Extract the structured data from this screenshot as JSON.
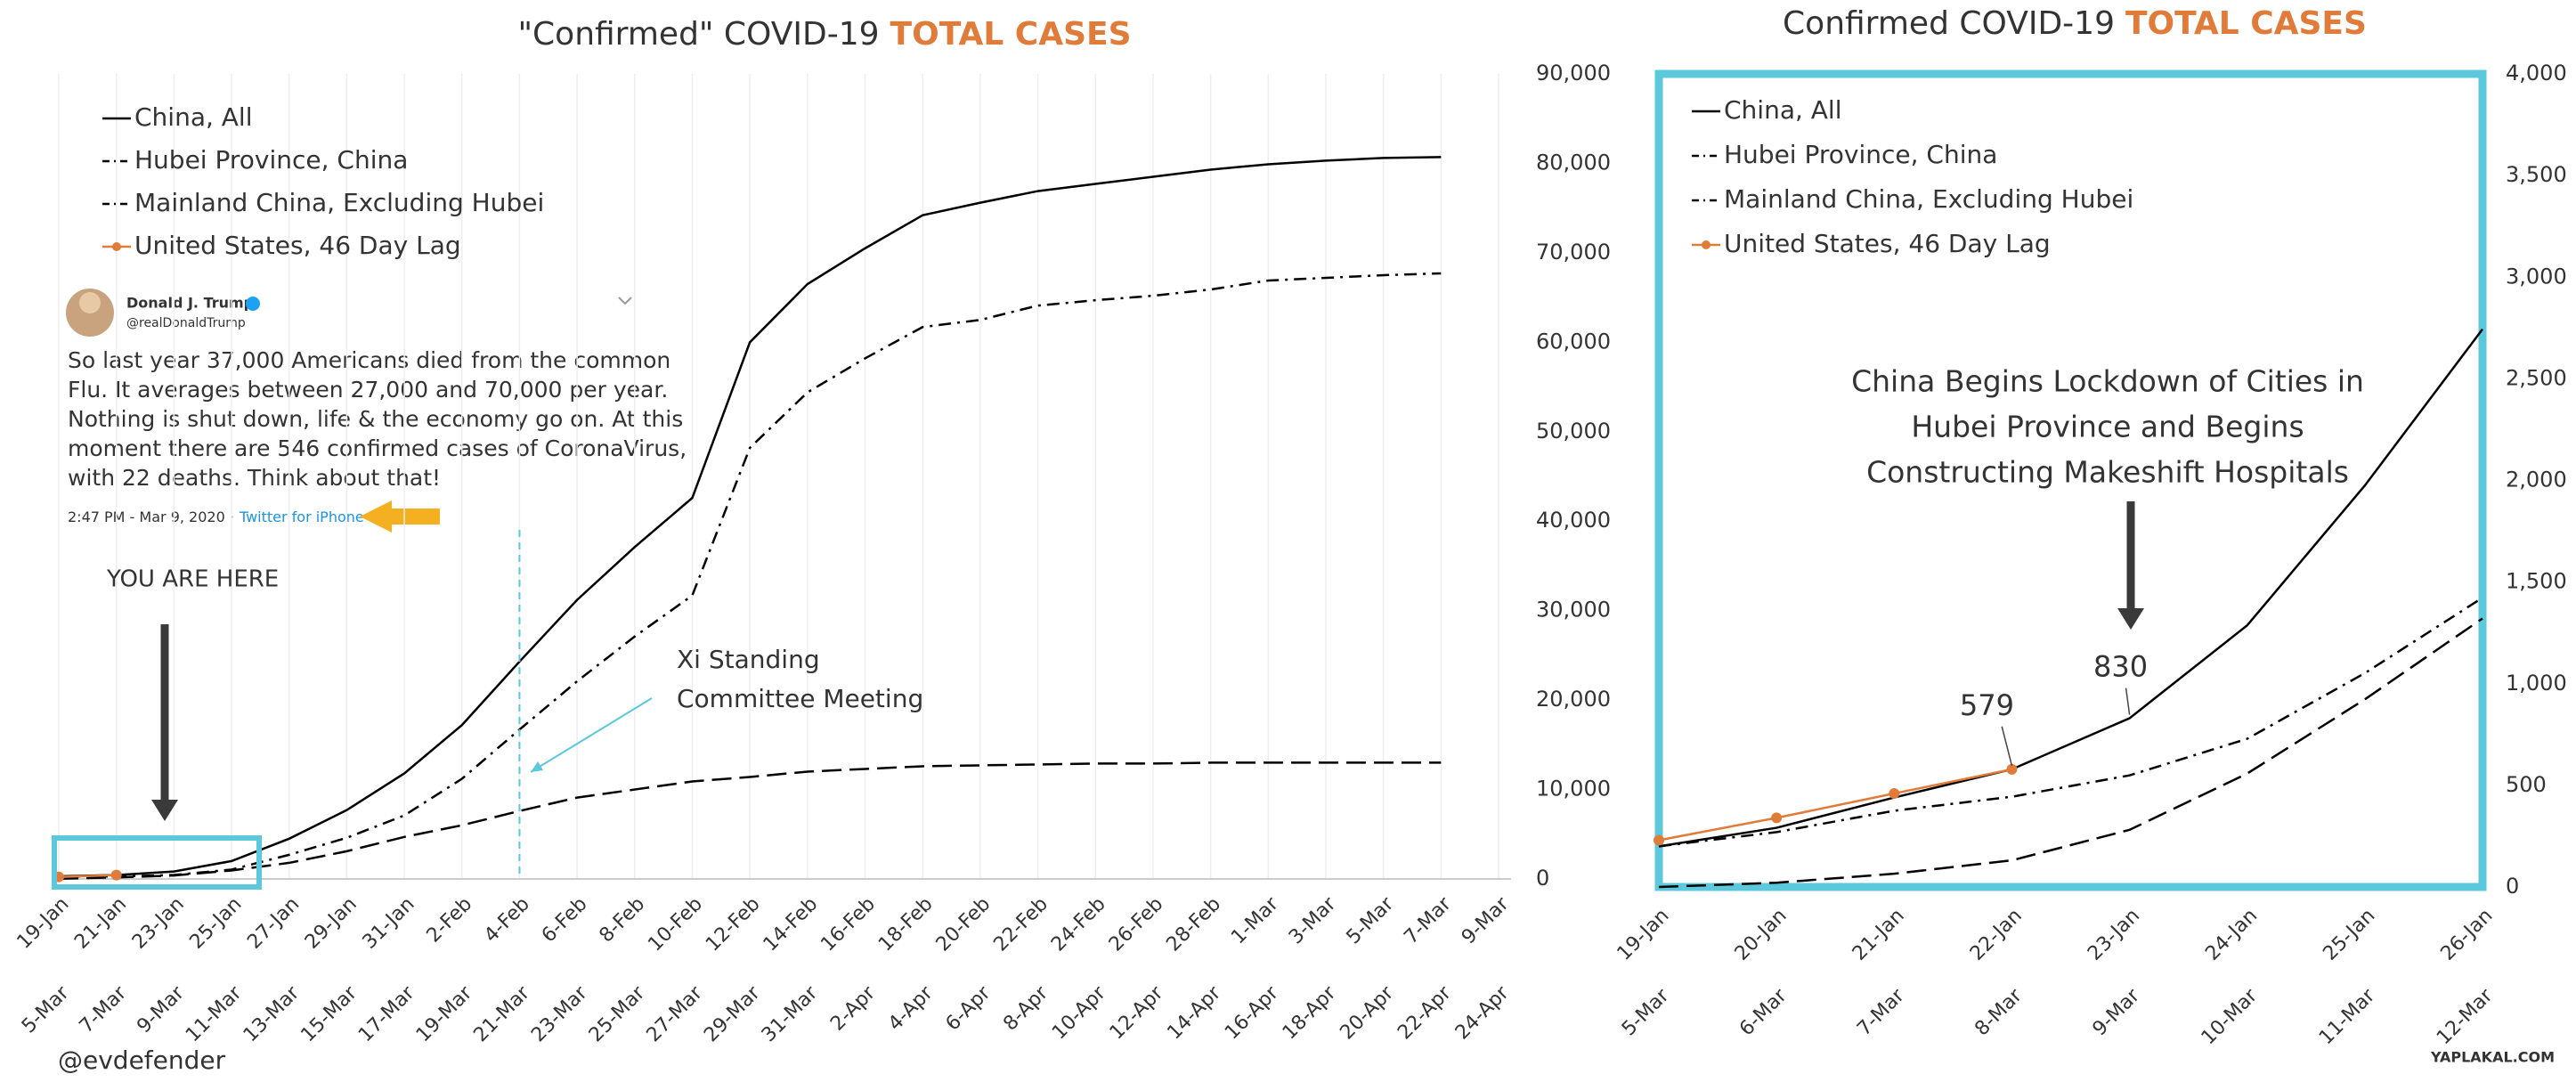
{
  "chart_data": [
    {
      "type": "line",
      "title_parts": [
        "\"Confirmed\" COVID-19",
        "TOTAL CASES"
      ],
      "categories": [
        "19-Jan",
        "21-Jan",
        "23-Jan",
        "25-Jan",
        "27-Jan",
        "29-Jan",
        "31-Jan",
        "2-Feb",
        "4-Feb",
        "6-Feb",
        "8-Feb",
        "10-Feb",
        "12-Feb",
        "14-Feb",
        "16-Feb",
        "18-Feb",
        "20-Feb",
        "22-Feb",
        "24-Feb",
        "26-Feb",
        "28-Feb",
        "1-Mar",
        "3-Mar",
        "5-Mar",
        "7-Mar",
        "9-Mar"
      ],
      "categories_secondary": [
        "5-Mar",
        "7-Mar",
        "9-Mar",
        "11-Mar",
        "13-Mar",
        "15-Mar",
        "17-Mar",
        "19-Mar",
        "21-Mar",
        "23-Mar",
        "25-Mar",
        "27-Mar",
        "29-Mar",
        "31-Mar",
        "2-Apr",
        "4-Apr",
        "6-Apr",
        "8-Apr",
        "10-Apr",
        "12-Apr",
        "14-Apr",
        "16-Apr",
        "18-Apr",
        "20-Apr",
        "22-Apr",
        "24-Apr"
      ],
      "secondary_color": "#e07b39",
      "series": [
        {
          "name": "China, All",
          "color": "#000000",
          "dash": "solid",
          "values": [
            300,
            440,
            830,
            2000,
            4500,
            7700,
            11800,
            17200,
            24300,
            31200,
            37100,
            42600,
            60000,
            66500,
            70500,
            74200,
            75600,
            76900,
            77700,
            78500,
            79300,
            79900,
            80300,
            80600,
            80700,
            null
          ]
        },
        {
          "name": "Hubei Province, China",
          "color": "#000000",
          "dash": "dashdot",
          "values": [
            270,
            270,
            444,
            1050,
            2700,
            4600,
            7100,
            11200,
            16700,
            22100,
            27100,
            31700,
            48200,
            54400,
            58200,
            61700,
            62500,
            64100,
            64700,
            65200,
            65900,
            66900,
            67200,
            67500,
            67700,
            null
          ]
        },
        {
          "name": "Mainland China, Excluding Hubei",
          "color": "#000000",
          "dash": "longdash",
          "values": [
            30,
            170,
            390,
            950,
            1800,
            3100,
            4700,
            6000,
            7600,
            9100,
            10000,
            10900,
            11400,
            12000,
            12300,
            12600,
            12700,
            12800,
            12900,
            12900,
            13000,
            13000,
            13000,
            13000,
            13000,
            null
          ]
        },
        {
          "name": "United States, 46 Day Lag",
          "color": "#e07b39",
          "dash": "solid",
          "marker": true,
          "values": [
            230,
            435,
            null,
            null,
            null,
            null,
            null,
            null,
            null,
            null,
            null,
            null,
            null,
            null,
            null,
            null,
            null,
            null,
            null,
            null,
            null,
            null,
            null,
            null,
            null,
            null
          ]
        }
      ],
      "ylim": [
        0,
        90000
      ],
      "yticks": [
        0,
        {
          "value": 10000,
          "label": "10,000"
        },
        {
          "value": 20000,
          "label": "20,000"
        },
        {
          "value": 30000,
          "label": "30,000"
        },
        {
          "value": 40000,
          "label": "40,000"
        },
        {
          "value": 50000,
          "label": "50,000"
        },
        {
          "value": 60000,
          "label": "60,000"
        },
        {
          "value": 70000,
          "label": "70,000"
        },
        {
          "value": 80000,
          "label": "80,000"
        },
        {
          "value": 90000,
          "label": "90,000"
        }
      ],
      "y_axis_side": "right",
      "grid": "x",
      "legend": "top-left",
      "annotations": [
        {
          "lines": [
            "YOU ARE HERE"
          ]
        },
        {
          "lines": [
            "Xi Standing",
            "Committee Meeting"
          ],
          "x": "4-Feb",
          "color": "#5bc8dc"
        }
      ]
    },
    {
      "type": "line",
      "title_parts": [
        "Confirmed COVID-19",
        "TOTAL CASES"
      ],
      "categories": [
        "19-Jan",
        "20-Jan",
        "21-Jan",
        "22-Jan",
        "23-Jan",
        "24-Jan",
        "25-Jan",
        "26-Jan"
      ],
      "categories_secondary": [
        "5-Mar",
        "6-Mar",
        "7-Mar",
        "8-Mar",
        "9-Mar",
        "10-Mar",
        "11-Mar",
        "12-Mar"
      ],
      "secondary_color": "#e07b39",
      "series": [
        {
          "name": "China, All",
          "color": "#000000",
          "dash": "solid",
          "values": [
            200,
            291,
            440,
            579,
            830,
            1287,
            1975,
            2744
          ],
          "value_labels": [
            null,
            null,
            null,
            null,
            "830",
            null,
            null,
            null
          ]
        },
        {
          "name": "Hubei Province, China",
          "color": "#000000",
          "dash": "dashdot",
          "values": [
            200,
            270,
            375,
            444,
            549,
            729,
            1052,
            1423
          ]
        },
        {
          "name": "Mainland China, Excluding Hubei",
          "color": "#000000",
          "dash": "longdash",
          "values": [
            0,
            21,
            65,
            131,
            281,
            558,
            923,
            1321
          ]
        },
        {
          "name": "United States, 46 Day Lag",
          "color": "#e07b39",
          "dash": "solid",
          "marker": true,
          "values": [
            230,
            340,
            460,
            579,
            null,
            null,
            null,
            null
          ],
          "value_labels": [
            null,
            null,
            null,
            "579",
            null,
            null,
            null,
            null
          ]
        }
      ],
      "ylim": [
        0,
        4000
      ],
      "yticks": [
        0,
        500,
        {
          "value": 1000,
          "label": "1,000"
        },
        {
          "value": 1500,
          "label": "1,500"
        },
        {
          "value": 2000,
          "label": "2,000"
        },
        {
          "value": 2500,
          "label": "2,500"
        },
        {
          "value": 3000,
          "label": "3,000"
        },
        {
          "value": 3500,
          "label": "3,500"
        },
        {
          "value": 4000,
          "label": "4,000"
        }
      ],
      "y_axis_side": "right",
      "grid": "none",
      "legend": "top-left",
      "frame_color": "#5bc8dc",
      "annotations": [
        {
          "lines": [
            "China Begins Lockdown of Cities in",
            "Hubei Province and Begins",
            "Constructing Makeshift Hospitals"
          ]
        }
      ]
    }
  ],
  "tweet": {
    "name": "Donald J. Trump",
    "handle": "@realDonaldTrump",
    "lines": [
      "So last year 37,000 Americans died from the common",
      "Flu. It averages between 27,000 and 70,000 per year.",
      "Nothing is shut down, life & the economy go on. At this",
      "moment there are 546 confirmed cases of CoronaVirus,",
      "with 22 deaths. Think about that!"
    ],
    "time": "2:47 PM - Mar 9, 2020 ·",
    "source": "Twitter for iPhone"
  },
  "credit": "@evdefender",
  "watermark": "YAPLAKAL.COM"
}
